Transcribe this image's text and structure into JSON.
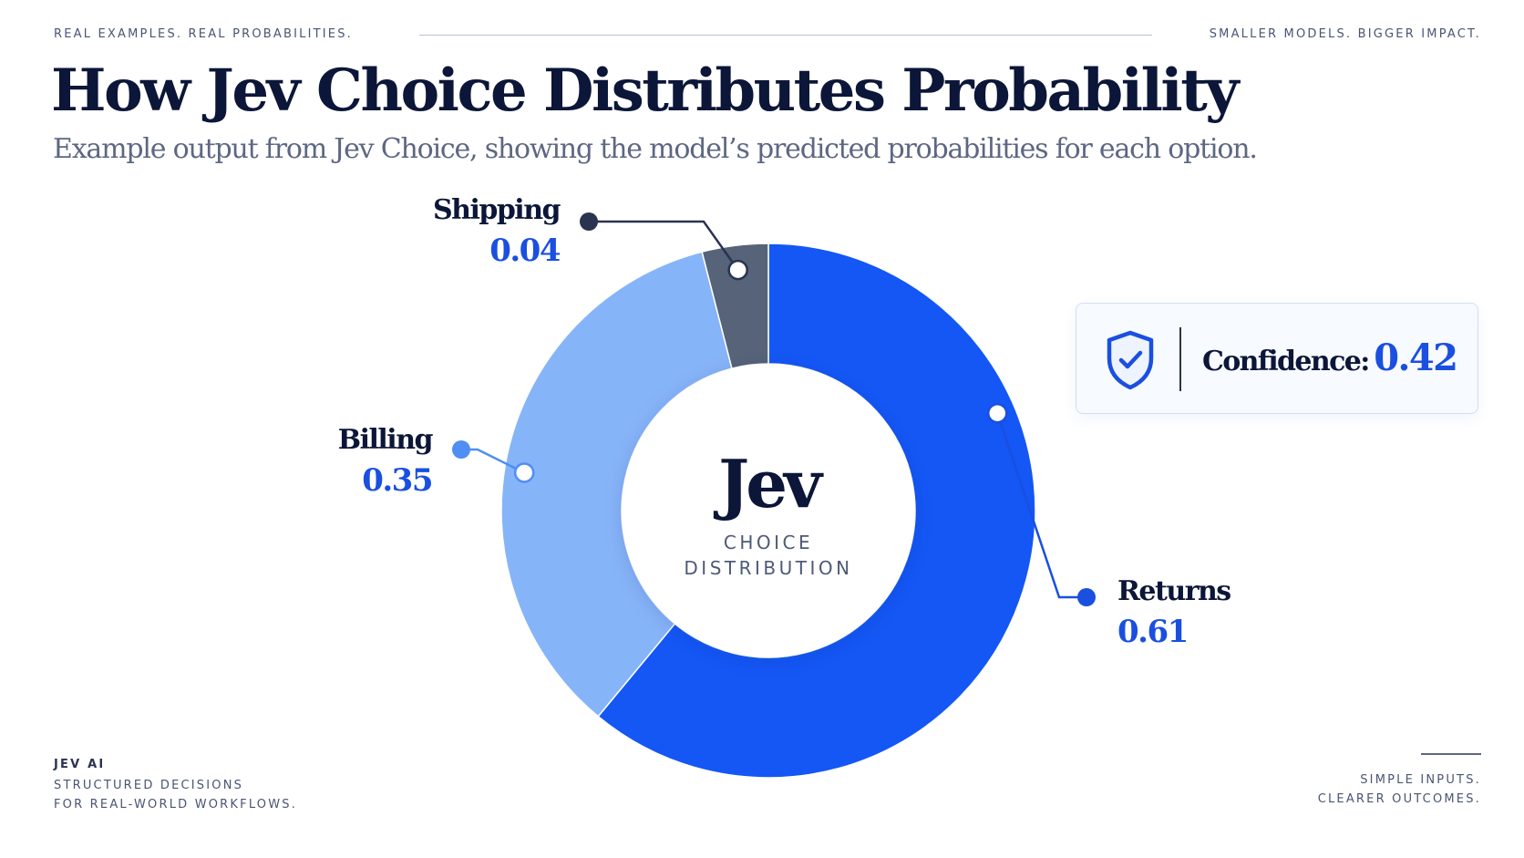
{
  "header": {
    "eyebrow_left": "REAL EXAMPLES. REAL PROBABILITIES.",
    "eyebrow_right": "SMALLER MODELS. BIGGER IMPACT.",
    "title": "How Jev Choice Distributes Probability",
    "subtitle": "Example output from Jev Choice, showing the model’s predicted probabilities for each option."
  },
  "chart_data": {
    "type": "pie",
    "style": "donut",
    "categories": [
      "Returns",
      "Billing",
      "Shipping"
    ],
    "values": [
      0.61,
      0.35,
      0.04
    ],
    "value_labels": [
      "0.61",
      "0.35",
      "0.04"
    ],
    "colors": [
      "#1457f5",
      "#86b4f8",
      "#566378"
    ],
    "center_title": "Jev",
    "center_caption_line1": "CHOICE",
    "center_caption_line2": "DISTRIBUTION",
    "legend": "none"
  },
  "confidence": {
    "label": "Confidence:",
    "value": "0.42",
    "icon": "shield-check-icon"
  },
  "footer": {
    "brand": "JEV AI",
    "left_line1": "STRUCTURED DECISIONS",
    "left_line2": "FOR REAL-WORLD WORKFLOWS.",
    "right_line1": "SIMPLE INPUTS.",
    "right_line2": "CLEARER OUTCOMES."
  }
}
